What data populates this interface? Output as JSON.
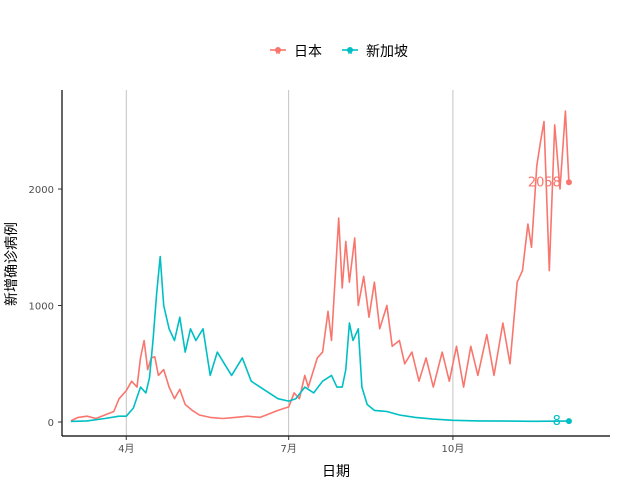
{
  "chart_data": {
    "type": "line",
    "xlabel": "日期",
    "ylabel": "新增确诊病例",
    "legend": {
      "position": "top",
      "entries": [
        "日本",
        "新加坡"
      ]
    },
    "x_tick_labels": [
      "4月",
      "7月",
      "10月"
    ],
    "x_tick_dates": [
      "2020-04-01",
      "2020-07-01",
      "2020-10-01"
    ],
    "y_tick_labels": [
      "0",
      "1000",
      "2000"
    ],
    "y_ticks": [
      0,
      1000,
      2000
    ],
    "xlim": [
      "2020-02-25",
      "2020-12-28"
    ],
    "ylim": [
      -120,
      2850
    ],
    "grid": "vertical-major",
    "series": [
      {
        "name": "日本",
        "color": "#F8766D",
        "end_label": "2058",
        "points": [
          [
            "2020-03-01",
            10
          ],
          [
            "2020-03-05",
            40
          ],
          [
            "2020-03-10",
            50
          ],
          [
            "2020-03-15",
            30
          ],
          [
            "2020-03-20",
            60
          ],
          [
            "2020-03-25",
            90
          ],
          [
            "2020-03-28",
            200
          ],
          [
            "2020-04-01",
            270
          ],
          [
            "2020-04-04",
            350
          ],
          [
            "2020-04-07",
            300
          ],
          [
            "2020-04-09",
            550
          ],
          [
            "2020-04-11",
            700
          ],
          [
            "2020-04-13",
            450
          ],
          [
            "2020-04-15",
            550
          ],
          [
            "2020-04-17",
            560
          ],
          [
            "2020-04-19",
            400
          ],
          [
            "2020-04-22",
            450
          ],
          [
            "2020-04-25",
            300
          ],
          [
            "2020-04-28",
            200
          ],
          [
            "2020-05-01",
            280
          ],
          [
            "2020-05-04",
            150
          ],
          [
            "2020-05-08",
            100
          ],
          [
            "2020-05-12",
            60
          ],
          [
            "2020-05-18",
            40
          ],
          [
            "2020-05-25",
            30
          ],
          [
            "2020-06-01",
            40
          ],
          [
            "2020-06-08",
            50
          ],
          [
            "2020-06-15",
            40
          ],
          [
            "2020-06-20",
            70
          ],
          [
            "2020-06-25",
            100
          ],
          [
            "2020-07-01",
            130
          ],
          [
            "2020-07-04",
            250
          ],
          [
            "2020-07-07",
            200
          ],
          [
            "2020-07-10",
            400
          ],
          [
            "2020-07-12",
            300
          ],
          [
            "2020-07-15",
            450
          ],
          [
            "2020-07-17",
            550
          ],
          [
            "2020-07-20",
            600
          ],
          [
            "2020-07-23",
            950
          ],
          [
            "2020-07-25",
            700
          ],
          [
            "2020-07-29",
            1750
          ],
          [
            "2020-07-31",
            1150
          ],
          [
            "2020-08-02",
            1550
          ],
          [
            "2020-08-04",
            1200
          ],
          [
            "2020-08-07",
            1580
          ],
          [
            "2020-08-09",
            1000
          ],
          [
            "2020-08-12",
            1250
          ],
          [
            "2020-08-15",
            900
          ],
          [
            "2020-08-18",
            1200
          ],
          [
            "2020-08-21",
            800
          ],
          [
            "2020-08-25",
            1000
          ],
          [
            "2020-08-28",
            650
          ],
          [
            "2020-09-01",
            700
          ],
          [
            "2020-09-04",
            500
          ],
          [
            "2020-09-08",
            600
          ],
          [
            "2020-09-12",
            350
          ],
          [
            "2020-09-16",
            550
          ],
          [
            "2020-09-20",
            300
          ],
          [
            "2020-09-25",
            600
          ],
          [
            "2020-09-29",
            350
          ],
          [
            "2020-10-03",
            650
          ],
          [
            "2020-10-07",
            300
          ],
          [
            "2020-10-11",
            650
          ],
          [
            "2020-10-15",
            400
          ],
          [
            "2020-10-20",
            750
          ],
          [
            "2020-10-24",
            400
          ],
          [
            "2020-10-29",
            850
          ],
          [
            "2020-11-02",
            500
          ],
          [
            "2020-11-06",
            1200
          ],
          [
            "2020-11-09",
            1300
          ],
          [
            "2020-11-12",
            1700
          ],
          [
            "2020-11-14",
            1500
          ],
          [
            "2020-11-17",
            2200
          ],
          [
            "2020-11-19",
            2400
          ],
          [
            "2020-11-21",
            2580
          ],
          [
            "2020-11-24",
            1300
          ],
          [
            "2020-11-27",
            2550
          ],
          [
            "2020-11-30",
            2000
          ],
          [
            "2020-12-03",
            2670
          ],
          [
            "2020-12-05",
            2058
          ]
        ]
      },
      {
        "name": "新加坡",
        "color": "#00BFC4",
        "end_label": "8",
        "points": [
          [
            "2020-03-01",
            5
          ],
          [
            "2020-03-10",
            10
          ],
          [
            "2020-03-20",
            30
          ],
          [
            "2020-03-28",
            50
          ],
          [
            "2020-04-01",
            50
          ],
          [
            "2020-04-05",
            120
          ],
          [
            "2020-04-09",
            300
          ],
          [
            "2020-04-12",
            250
          ],
          [
            "2020-04-14",
            380
          ],
          [
            "2020-04-16",
            700
          ],
          [
            "2020-04-18",
            1100
          ],
          [
            "2020-04-20",
            1420
          ],
          [
            "2020-04-22",
            1000
          ],
          [
            "2020-04-25",
            800
          ],
          [
            "2020-04-28",
            700
          ],
          [
            "2020-05-01",
            900
          ],
          [
            "2020-05-04",
            600
          ],
          [
            "2020-05-07",
            800
          ],
          [
            "2020-05-10",
            700
          ],
          [
            "2020-05-14",
            800
          ],
          [
            "2020-05-18",
            400
          ],
          [
            "2020-05-22",
            600
          ],
          [
            "2020-05-26",
            500
          ],
          [
            "2020-05-30",
            400
          ],
          [
            "2020-06-05",
            550
          ],
          [
            "2020-06-10",
            350
          ],
          [
            "2020-06-15",
            300
          ],
          [
            "2020-06-20",
            250
          ],
          [
            "2020-06-25",
            200
          ],
          [
            "2020-07-01",
            180
          ],
          [
            "2020-07-05",
            200
          ],
          [
            "2020-07-10",
            300
          ],
          [
            "2020-07-15",
            250
          ],
          [
            "2020-07-20",
            350
          ],
          [
            "2020-07-25",
            400
          ],
          [
            "2020-07-28",
            300
          ],
          [
            "2020-07-31",
            300
          ],
          [
            "2020-08-02",
            450
          ],
          [
            "2020-08-04",
            850
          ],
          [
            "2020-08-06",
            700
          ],
          [
            "2020-08-09",
            800
          ],
          [
            "2020-08-11",
            300
          ],
          [
            "2020-08-14",
            150
          ],
          [
            "2020-08-18",
            100
          ],
          [
            "2020-08-25",
            90
          ],
          [
            "2020-09-01",
            60
          ],
          [
            "2020-09-10",
            40
          ],
          [
            "2020-09-20",
            25
          ],
          [
            "2020-10-01",
            15
          ],
          [
            "2020-10-15",
            10
          ],
          [
            "2020-11-01",
            8
          ],
          [
            "2020-11-15",
            6
          ],
          [
            "2020-12-05",
            8
          ]
        ]
      }
    ]
  }
}
